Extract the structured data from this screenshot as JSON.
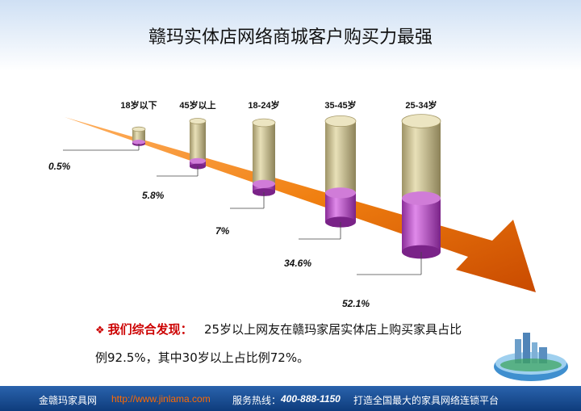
{
  "title": "赣玛实体店网络商城客户购买力最强",
  "chart_data": {
    "type": "bar",
    "title": "赣玛实体店网络商城客户购买力最强",
    "categories": [
      "18岁以下",
      "45岁以上",
      "18-24岁",
      "35-45岁",
      "25-34岁"
    ],
    "values": [
      0.5,
      5.8,
      7,
      34.6,
      52.1
    ],
    "value_labels": [
      "0.5%",
      "5.8%",
      "7%",
      "34.6%",
      "52.1%"
    ],
    "colors": {
      "cylinder": "#c8bd8c",
      "fill": "#bb55c4",
      "arrow": "#f07f10"
    }
  },
  "finding": {
    "label": "我们综合发现：",
    "line1": "25岁以上网友在赣玛家居实体店上购买家具占比",
    "line2": "例92.5%，其中30岁以上占比例72%。",
    "icon": "diamond-bullet-icon"
  },
  "footer": {
    "brand": "金赣玛家具网",
    "url": "http://www.jinlama.com",
    "hotline_label": "服务热线：",
    "hotline": "400-888-1150",
    "slogan": "打造全国最大的家具网络连锁平台"
  }
}
